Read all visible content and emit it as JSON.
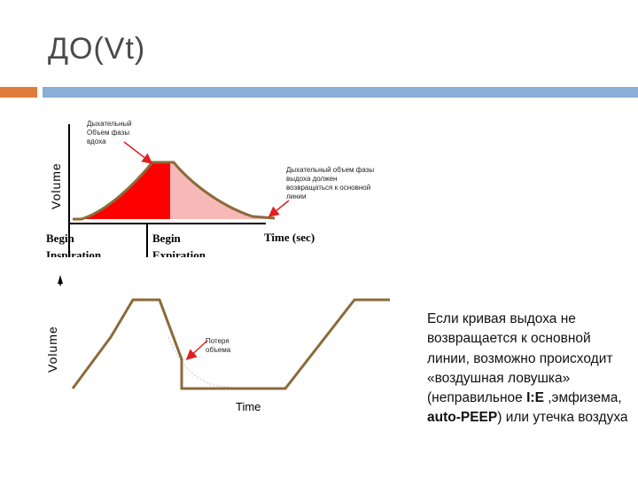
{
  "slide": {
    "title": "ДО(Vt)",
    "colors": {
      "accent": "#e07b39",
      "rule": "#8aaed6"
    }
  },
  "figure_top": {
    "ylabel": "Volume",
    "xlabel": "Time (sec)",
    "marker_begin_inspiration": [
      "Begin",
      "Inspiration"
    ],
    "marker_begin_expiration": [
      "Begin",
      "Expiration"
    ],
    "annotation_inspiratory": [
      "Дыхательный",
      "Объем фазы",
      "вдоха"
    ],
    "annotation_expiratory": [
      "Дыхательный объем фазы",
      "выдоха должен",
      "возвращаться к основной",
      "линии"
    ],
    "colors": {
      "inspiration_fill": "#ff0000",
      "expiration_fill": "#f7b8b8",
      "curve": "#8b6b3a",
      "arrow": "#e02020"
    }
  },
  "figure_bottom": {
    "ylabel": "Volume",
    "xlabel": "Time",
    "annotation_loss": [
      "Потеря",
      "объема"
    ],
    "colors": {
      "curve": "#8b6b3a",
      "arrow": "#e02020",
      "dotted": "#c8c8c8"
    }
  },
  "body": {
    "p1": "Если кривая выдоха не возвращается к основной линии, возможно происходит «воздушная ловушка» (неправильное ",
    "bold1": "I:E",
    "p2": " ,эмфизема, ",
    "bold2": "auto-PEEP",
    "p3": ") или утечка воздуха"
  }
}
